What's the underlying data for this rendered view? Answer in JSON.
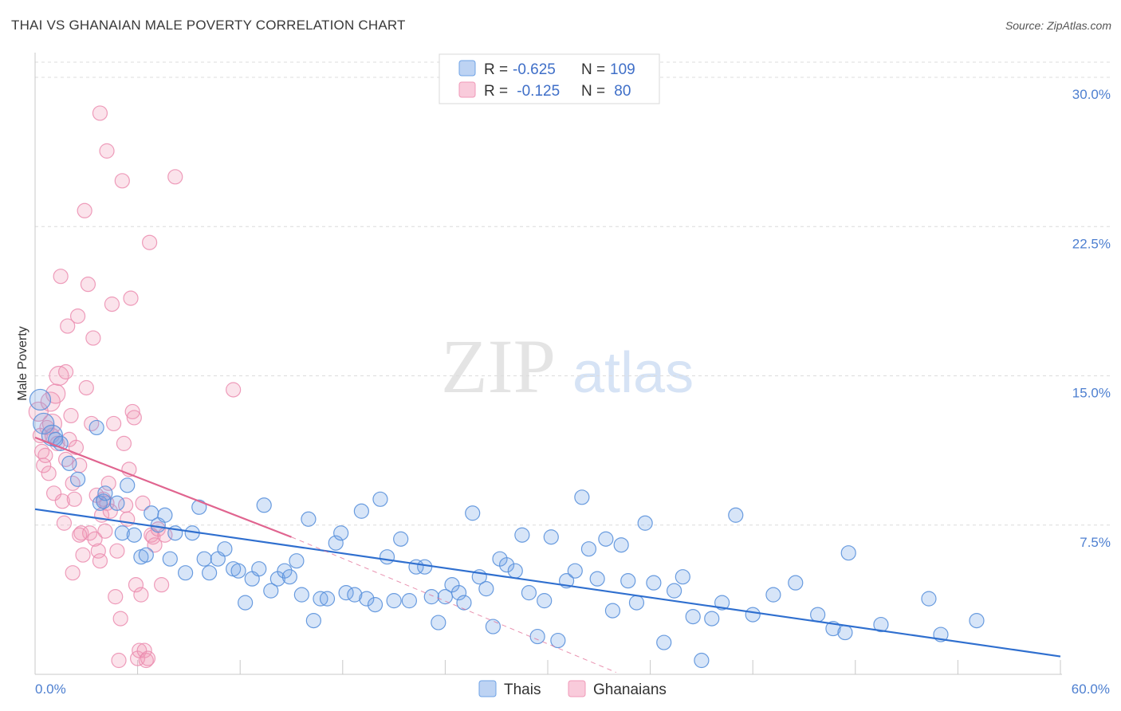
{
  "header": {
    "title": "THAI VS GHANAIAN MALE POVERTY CORRELATION CHART",
    "source": "Source: ZipAtlas.com"
  },
  "watermark": {
    "zip": "ZIP",
    "atlas": "atlas"
  },
  "colors": {
    "thai": "#6fa3e6",
    "thai_line": "#2f6fcf",
    "ghanaian": "#f09ab8",
    "ghanaian_line": "#e0648f",
    "tick": "#4d7fd0"
  },
  "legend_top": [
    {
      "r_label": "R = ",
      "r_value": "-0.625",
      "n_label": "N = ",
      "n_value": "109"
    },
    {
      "r_label": "R = ",
      "r_value": " -0.125",
      "n_label": "N = ",
      "n_value": " 80"
    }
  ],
  "chart_data": {
    "type": "scatter",
    "title": "THAI VS GHANAIAN MALE POVERTY CORRELATION CHART",
    "ylabel": "Male Poverty",
    "xlabel": "",
    "xlim": [
      0,
      60
    ],
    "ylim": [
      0,
      31.5
    ],
    "y_ticks": [
      {
        "value": 7.5,
        "label": "7.5%"
      },
      {
        "value": 15,
        "label": "15.0%"
      },
      {
        "value": 22.5,
        "label": "22.5%"
      },
      {
        "value": 30,
        "label": "30.0%"
      }
    ],
    "x_ticks": [
      {
        "value": 0,
        "label": "0.0%"
      },
      {
        "value": 60,
        "label": "60.0%"
      }
    ],
    "grid": "horizontal dashed",
    "legend": "bottom-center",
    "series": [
      {
        "name": "Thais",
        "trend": {
          "x": [
            0,
            60
          ],
          "y": [
            8.3,
            0.9
          ]
        },
        "points": [
          [
            0.3,
            13.8
          ],
          [
            0.5,
            12.6
          ],
          [
            1.0,
            12.0
          ],
          [
            1.2,
            11.8
          ],
          [
            1.5,
            11.6
          ],
          [
            2.0,
            10.6
          ],
          [
            2.5,
            9.8
          ],
          [
            3.6,
            12.4
          ],
          [
            3.8,
            8.6
          ],
          [
            4.0,
            8.7
          ],
          [
            4.1,
            9.1
          ],
          [
            4.8,
            8.6
          ],
          [
            5.1,
            7.1
          ],
          [
            5.4,
            9.5
          ],
          [
            5.8,
            7.0
          ],
          [
            6.2,
            5.9
          ],
          [
            6.5,
            6.0
          ],
          [
            6.8,
            8.1
          ],
          [
            7.2,
            7.5
          ],
          [
            7.6,
            8.0
          ],
          [
            7.9,
            5.8
          ],
          [
            8.2,
            7.1
          ],
          [
            8.8,
            5.1
          ],
          [
            9.2,
            7.1
          ],
          [
            9.6,
            8.4
          ],
          [
            9.9,
            5.8
          ],
          [
            10.2,
            5.1
          ],
          [
            10.7,
            5.8
          ],
          [
            11.1,
            6.3
          ],
          [
            11.6,
            5.3
          ],
          [
            11.9,
            5.2
          ],
          [
            12.3,
            3.6
          ],
          [
            12.7,
            4.8
          ],
          [
            13.1,
            5.3
          ],
          [
            13.4,
            8.5
          ],
          [
            13.8,
            4.2
          ],
          [
            14.2,
            4.8
          ],
          [
            14.6,
            5.2
          ],
          [
            14.9,
            4.9
          ],
          [
            15.3,
            5.7
          ],
          [
            15.6,
            4.0
          ],
          [
            16.0,
            7.8
          ],
          [
            16.3,
            2.7
          ],
          [
            16.7,
            3.8
          ],
          [
            17.1,
            3.8
          ],
          [
            17.6,
            6.6
          ],
          [
            17.9,
            7.1
          ],
          [
            18.2,
            4.1
          ],
          [
            18.7,
            4.0
          ],
          [
            19.1,
            8.2
          ],
          [
            19.4,
            3.8
          ],
          [
            19.9,
            3.5
          ],
          [
            20.2,
            8.8
          ],
          [
            20.6,
            5.9
          ],
          [
            21.0,
            3.7
          ],
          [
            21.4,
            6.8
          ],
          [
            21.9,
            3.7
          ],
          [
            22.3,
            5.4
          ],
          [
            22.8,
            5.4
          ],
          [
            23.2,
            3.9
          ],
          [
            23.6,
            2.6
          ],
          [
            24.0,
            3.9
          ],
          [
            24.4,
            4.5
          ],
          [
            24.8,
            4.1
          ],
          [
            25.1,
            3.6
          ],
          [
            25.6,
            8.1
          ],
          [
            26.0,
            4.9
          ],
          [
            26.4,
            4.3
          ],
          [
            26.8,
            2.4
          ],
          [
            27.2,
            5.8
          ],
          [
            27.6,
            5.5
          ],
          [
            28.1,
            5.2
          ],
          [
            28.5,
            7.0
          ],
          [
            28.9,
            4.1
          ],
          [
            29.4,
            1.9
          ],
          [
            29.8,
            3.7
          ],
          [
            30.2,
            6.9
          ],
          [
            30.6,
            1.7
          ],
          [
            31.1,
            4.7
          ],
          [
            31.6,
            5.2
          ],
          [
            32.0,
            8.9
          ],
          [
            32.4,
            6.3
          ],
          [
            32.9,
            4.8
          ],
          [
            33.4,
            6.8
          ],
          [
            33.8,
            3.2
          ],
          [
            34.3,
            6.5
          ],
          [
            34.7,
            4.7
          ],
          [
            35.2,
            3.6
          ],
          [
            35.7,
            7.6
          ],
          [
            36.2,
            4.6
          ],
          [
            36.8,
            1.6
          ],
          [
            37.4,
            4.2
          ],
          [
            37.9,
            4.9
          ],
          [
            38.5,
            2.9
          ],
          [
            39.0,
            0.7
          ],
          [
            39.6,
            2.8
          ],
          [
            40.2,
            3.6
          ],
          [
            41.0,
            8.0
          ],
          [
            42.0,
            3.0
          ],
          [
            43.2,
            4.0
          ],
          [
            44.5,
            4.6
          ],
          [
            45.8,
            3.0
          ],
          [
            46.7,
            2.3
          ],
          [
            47.4,
            2.1
          ],
          [
            47.6,
            6.1
          ],
          [
            49.5,
            2.5
          ],
          [
            52.3,
            3.8
          ],
          [
            53.0,
            2.0
          ],
          [
            55.1,
            2.7
          ]
        ]
      },
      {
        "name": "Ghanaians",
        "trend": {
          "x": [
            0,
            15
          ],
          "y": [
            11.9,
            6.9
          ]
        },
        "trend_extension": {
          "x": [
            15,
            34
          ],
          "y": [
            6.9,
            0.1
          ]
        },
        "points": [
          [
            0.2,
            13.2
          ],
          [
            0.3,
            12.0
          ],
          [
            0.4,
            11.2
          ],
          [
            0.5,
            10.5
          ],
          [
            0.6,
            11.0
          ],
          [
            0.7,
            12.4
          ],
          [
            0.8,
            10.1
          ],
          [
            0.9,
            13.7
          ],
          [
            1.0,
            12.0
          ],
          [
            1.1,
            9.1
          ],
          [
            1.2,
            14.1
          ],
          [
            1.3,
            11.6
          ],
          [
            1.4,
            15.0
          ],
          [
            1.5,
            20.0
          ],
          [
            1.6,
            8.7
          ],
          [
            1.7,
            7.6
          ],
          [
            1.8,
            15.2
          ],
          [
            1.9,
            17.5
          ],
          [
            2.0,
            11.8
          ],
          [
            2.1,
            13.0
          ],
          [
            2.2,
            9.6
          ],
          [
            2.3,
            8.8
          ],
          [
            2.4,
            11.4
          ],
          [
            2.5,
            18.0
          ],
          [
            2.6,
            10.5
          ],
          [
            2.7,
            7.1
          ],
          [
            2.8,
            6.0
          ],
          [
            2.9,
            23.3
          ],
          [
            3.0,
            14.4
          ],
          [
            3.1,
            19.6
          ],
          [
            3.2,
            7.1
          ],
          [
            3.3,
            12.6
          ],
          [
            3.4,
            16.9
          ],
          [
            3.5,
            6.8
          ],
          [
            3.6,
            9.0
          ],
          [
            3.7,
            6.2
          ],
          [
            3.8,
            5.7
          ],
          [
            3.9,
            8.0
          ],
          [
            4.0,
            8.8
          ],
          [
            4.1,
            7.2
          ],
          [
            4.2,
            8.6
          ],
          [
            4.3,
            9.6
          ],
          [
            4.4,
            8.2
          ],
          [
            4.5,
            18.6
          ],
          [
            4.6,
            12.6
          ],
          [
            4.7,
            3.9
          ],
          [
            4.8,
            6.2
          ],
          [
            4.9,
            0.7
          ],
          [
            5.0,
            2.8
          ],
          [
            5.1,
            24.8
          ],
          [
            5.2,
            11.6
          ],
          [
            5.3,
            8.5
          ],
          [
            5.4,
            7.8
          ],
          [
            5.5,
            10.3
          ],
          [
            5.6,
            18.9
          ],
          [
            5.7,
            13.2
          ],
          [
            5.8,
            12.9
          ],
          [
            5.9,
            4.5
          ],
          [
            6.0,
            0.8
          ],
          [
            6.1,
            1.2
          ],
          [
            6.2,
            4.0
          ],
          [
            6.3,
            8.6
          ],
          [
            6.4,
            1.2
          ],
          [
            6.5,
            0.7
          ],
          [
            6.6,
            0.8
          ],
          [
            6.7,
            21.7
          ],
          [
            6.8,
            7.0
          ],
          [
            6.9,
            6.9
          ],
          [
            7.0,
            6.5
          ],
          [
            7.2,
            7.3
          ],
          [
            7.4,
            4.5
          ],
          [
            7.6,
            7.0
          ],
          [
            8.2,
            25.0
          ],
          [
            4.2,
            26.3
          ],
          [
            3.8,
            28.2
          ],
          [
            11.6,
            14.3
          ],
          [
            2.6,
            7.0
          ],
          [
            1.0,
            12.6
          ],
          [
            1.8,
            10.8
          ],
          [
            2.2,
            5.1
          ]
        ]
      }
    ]
  },
  "bottom_legend": [
    {
      "label": "Thais"
    },
    {
      "label": "Ghanaians"
    }
  ]
}
